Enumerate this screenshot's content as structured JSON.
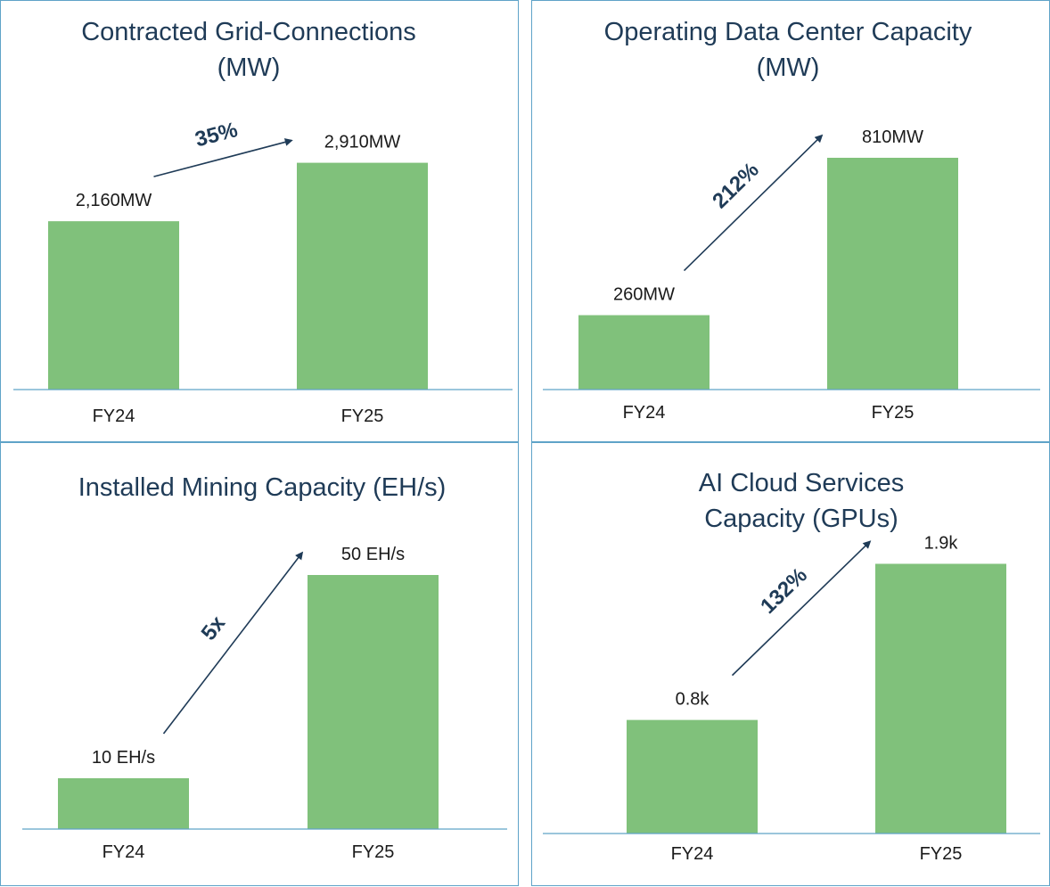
{
  "colors": {
    "bar": "#80c17b",
    "axis": "#5fa3c8",
    "arrow": "#1f3b57",
    "title": "#1f3b57",
    "border": "#5fa3c8"
  },
  "chart_data": [
    {
      "type": "bar",
      "title_lines": [
        "Contracted Grid-Connections",
        "(MW)"
      ],
      "categories": [
        "FY24",
        "FY25"
      ],
      "values": [
        2160,
        2910
      ],
      "data_labels": [
        "2,160MW",
        "2,910MW"
      ],
      "growth_label": "35%",
      "ylim": [
        0,
        3500
      ],
      "xlabel": "",
      "ylabel": "",
      "grid": false,
      "legend": "none"
    },
    {
      "type": "bar",
      "title_lines": [
        "Operating Data Center Capacity",
        "(MW)"
      ],
      "categories": [
        "FY24",
        "FY25"
      ],
      "values": [
        260,
        810
      ],
      "data_labels": [
        "260MW",
        "810MW"
      ],
      "growth_label": "212%",
      "ylim": [
        0,
        1000
      ],
      "xlabel": "",
      "ylabel": "",
      "grid": false,
      "legend": "none"
    },
    {
      "type": "bar",
      "title_lines": [
        "Installed Mining Capacity (EH/s)"
      ],
      "categories": [
        "FY24",
        "FY25"
      ],
      "values": [
        10,
        50
      ],
      "data_labels": [
        "10 EH/s",
        "50 EH/s"
      ],
      "growth_label": "5x",
      "ylim": [
        0,
        60
      ],
      "xlabel": "",
      "ylabel": "",
      "grid": false,
      "legend": "none"
    },
    {
      "type": "bar",
      "title_lines": [
        "AI Cloud Services",
        "Capacity (GPUs)"
      ],
      "categories": [
        "FY24",
        "FY25"
      ],
      "values": [
        0.8,
        1.9
      ],
      "data_labels": [
        "0.8k",
        "1.9k"
      ],
      "growth_label": "132%",
      "ylim": [
        0,
        2.6
      ],
      "xlabel": "",
      "ylabel": "",
      "grid": false,
      "legend": "none"
    }
  ]
}
